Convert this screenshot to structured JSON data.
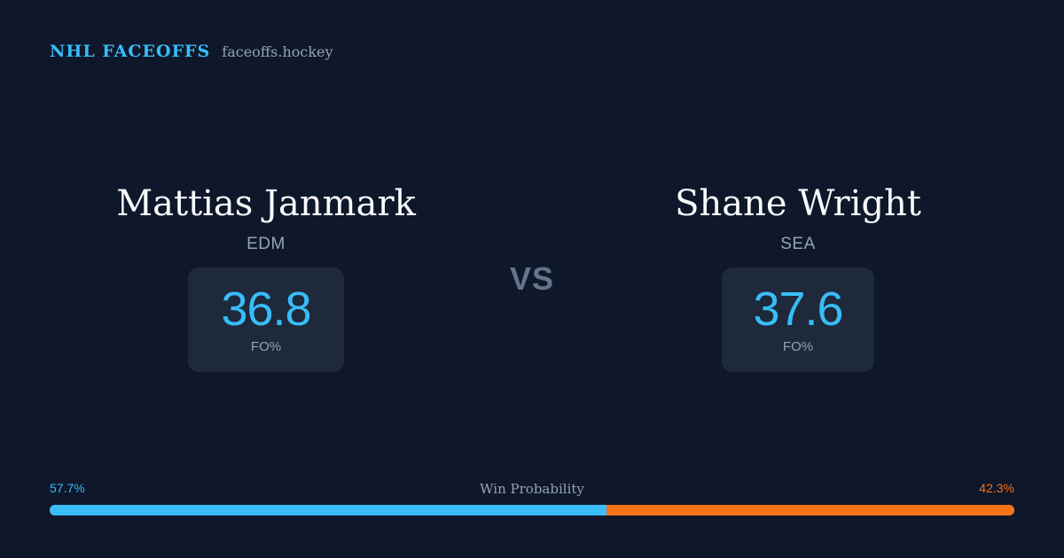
{
  "brand": {
    "name": "NHL FACEOFFS",
    "site": "faceoffs.hockey"
  },
  "player_left": {
    "name": "Mattias Janmark",
    "team": "EDM",
    "fo_value": "36.8",
    "fo_label": "FO%"
  },
  "player_right": {
    "name": "Shane Wright",
    "team": "SEA",
    "fo_value": "37.6",
    "fo_label": "FO%"
  },
  "vs_label": "VS",
  "win_probability": {
    "title": "Win Probability",
    "left_text": "57.7%",
    "right_text": "42.3%",
    "left_fraction": 0.577,
    "right_fraction": 0.423,
    "left_color": "#38bdf8",
    "right_color": "#f97316"
  },
  "colors": {
    "background": "#0f172a",
    "card": "#1e293b",
    "accent": "#38bdf8",
    "secondary_accent": "#f97316"
  }
}
